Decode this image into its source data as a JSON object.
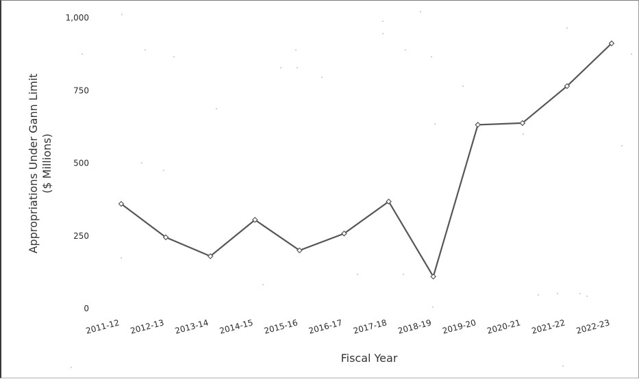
{
  "chart_data": {
    "type": "line",
    "title": "",
    "xlabel": "Fiscal Year",
    "ylabel_lines": [
      "Appropriations Under Gann Limit",
      "($ Millions)"
    ],
    "ylim": [
      0,
      1000
    ],
    "yticks": [
      0,
      250,
      500,
      750,
      1000
    ],
    "ytick_labels": [
      "0",
      "250",
      "500",
      "750",
      "1,000"
    ],
    "categories": [
      "2011-12",
      "2012-13",
      "2013-14",
      "2014-15",
      "2015-16",
      "2016-17",
      "2017-18",
      "2018-19",
      "2019-20",
      "2020-21",
      "2021-22",
      "2022-23"
    ],
    "series": [
      {
        "values": [
          360,
          245,
          180,
          305,
          200,
          258,
          368,
          110,
          632,
          638,
          765,
          912
        ]
      }
    ],
    "grid": false,
    "legend": "none",
    "color": "#555555"
  }
}
